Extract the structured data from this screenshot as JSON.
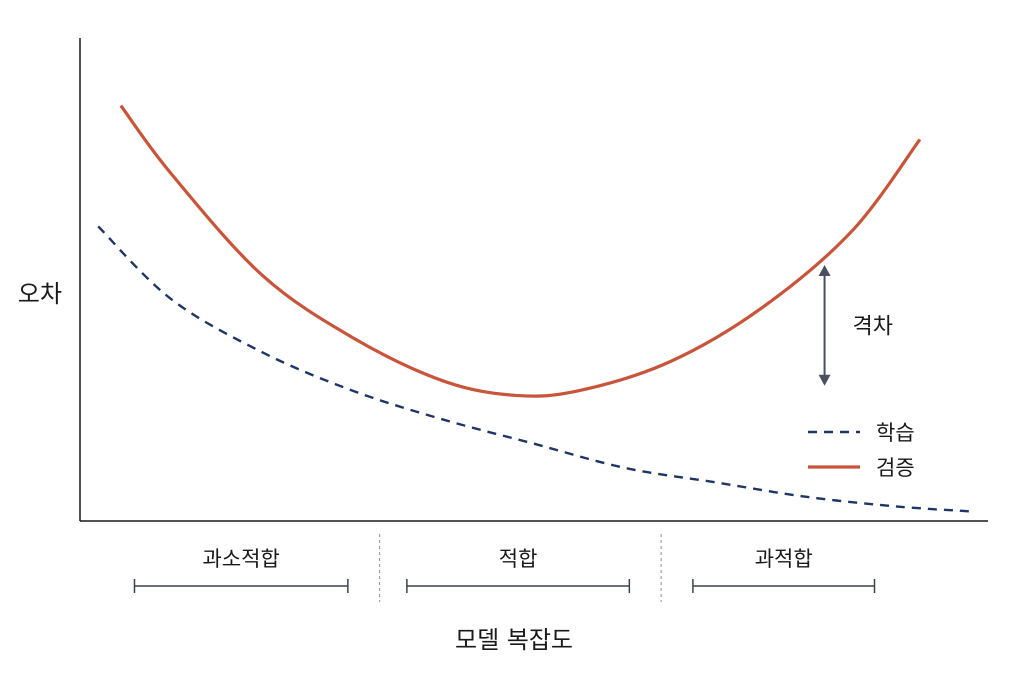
{
  "chart_data": {
    "type": "line",
    "title": "",
    "xlabel": "모델 복잡도",
    "ylabel": "오차",
    "xlim": [
      0,
      10
    ],
    "ylim": [
      0,
      10
    ],
    "grid": false,
    "legend_position": "bottom-right",
    "series": [
      {
        "name": "학습",
        "style": "dashed",
        "color": "#1f3566",
        "x": [
          0.2,
          1.0,
          2.0,
          3.0,
          4.0,
          5.0,
          6.0,
          7.0,
          8.0,
          9.0,
          9.8
        ],
        "y": [
          6.1,
          4.6,
          3.5,
          2.7,
          2.1,
          1.6,
          1.1,
          0.8,
          0.5,
          0.3,
          0.2
        ]
      },
      {
        "name": "검증",
        "style": "solid",
        "color": "#c8553a",
        "x": [
          0.45,
          1.0,
          2.0,
          3.0,
          4.0,
          4.8,
          5.5,
          6.5,
          7.5,
          8.5,
          9.25
        ],
        "y": [
          8.6,
          7.2,
          5.1,
          3.8,
          2.9,
          2.6,
          2.7,
          3.3,
          4.4,
          6.0,
          7.9
        ]
      }
    ],
    "annotations": {
      "gap_label": "격차",
      "gap_x": 8.2,
      "gap_y_from": 5.3,
      "gap_y_to": 2.8
    },
    "regions": [
      {
        "label": "과소적합",
        "x_from": 0.6,
        "x_to": 2.95
      },
      {
        "label": "적합",
        "x_from": 3.6,
        "x_to": 6.05
      },
      {
        "label": "과적합",
        "x_from": 6.75,
        "x_to": 8.75
      }
    ],
    "region_dividers": [
      3.3,
      6.4
    ]
  }
}
